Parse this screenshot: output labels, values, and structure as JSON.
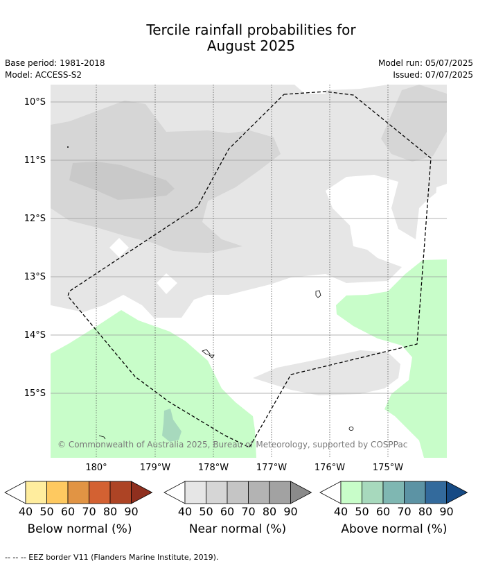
{
  "title_line1": "Tercile rainfall probabilities for",
  "title_line2": "August 2025",
  "base_period": "Base period: 1981-2018",
  "model": "Model: ACCESS-S2",
  "model_run": "Model run: 05/07/2025",
  "issued": "Issued: 07/07/2025",
  "lat_labels": [
    "10°S",
    "11°S",
    "12°S",
    "13°S",
    "14°S",
    "15°S"
  ],
  "lon_labels": [
    "180°",
    "179°W",
    "178°W",
    "177°W",
    "176°W",
    "175°W"
  ],
  "copyright": "© Commonwealth of Australia 2025, Bureau of Meteorology, supported by COSPPac",
  "colorbars": [
    {
      "label": "Below normal (%)",
      "ticks": [
        "40",
        "50",
        "60",
        "70",
        "80",
        "90"
      ],
      "colors": [
        "#ffed9e",
        "#fec960",
        "#e19444",
        "#d36132",
        "#ad4425",
        "#8f2f1e"
      ]
    },
    {
      "label": "Near normal (%)",
      "ticks": [
        "40",
        "50",
        "60",
        "70",
        "80",
        "90"
      ],
      "colors": [
        "#e6e6e6",
        "#d6d6d6",
        "#c5c5c5",
        "#b3b3b3",
        "#a2a2a2",
        "#8a8a8a"
      ]
    },
    {
      "label": "Above normal (%)",
      "ticks": [
        "40",
        "50",
        "60",
        "70",
        "80",
        "90"
      ],
      "colors": [
        "#c8fdc9",
        "#a7d9bd",
        "#7fb7b2",
        "#5c93a4",
        "#336a9c",
        "#164a84"
      ]
    }
  ],
  "footnote": "--  --  -- EEZ border V11 (Flanders Marine Institute, 2019)."
}
